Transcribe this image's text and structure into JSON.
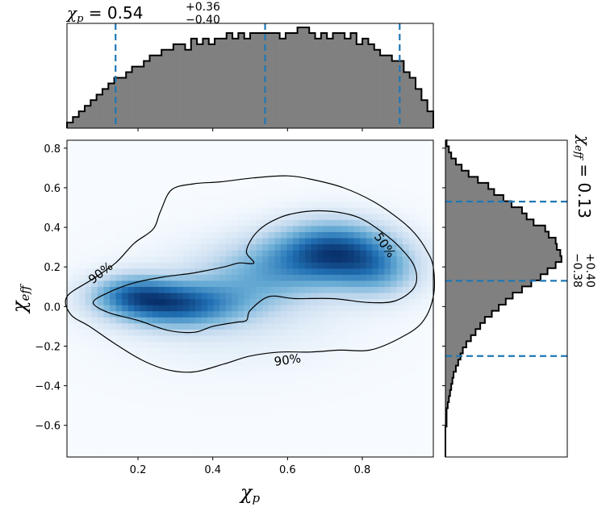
{
  "chart_data": [
    {
      "id": "joint",
      "type": "heatmap",
      "xlabel_symbol": "χ",
      "xlabel_sub": "p",
      "ylabel_symbol": "χ",
      "ylabel_sub": "eff",
      "xlim": [
        0.01,
        0.99
      ],
      "ylim": [
        -0.76,
        0.84
      ],
      "x_ticks": [
        0.2,
        0.4,
        0.6,
        0.8
      ],
      "x_tick_labels": [
        "0.2",
        "0.4",
        "0.6",
        "0.8"
      ],
      "y_ticks": [
        -0.6,
        -0.4,
        -0.2,
        0.0,
        0.2,
        0.4,
        0.6,
        0.8
      ],
      "y_tick_labels": [
        "−0.6",
        "−0.4",
        "−0.2",
        "0.0",
        "0.2",
        "0.4",
        "0.6",
        "0.8"
      ],
      "colormap": "Blues",
      "density_peaks": [
        {
          "x": 0.72,
          "y": 0.28,
          "sx": 0.11,
          "sy": 0.11,
          "w": 1.0
        },
        {
          "x": 0.3,
          "y": 0.01,
          "sx": 0.12,
          "sy": 0.08,
          "w": 0.85
        },
        {
          "x": 0.18,
          "y": 0.07,
          "sx": 0.08,
          "sy": 0.07,
          "w": 0.55
        },
        {
          "x": 0.53,
          "y": 0.17,
          "sx": 0.12,
          "sy": 0.12,
          "w": 0.4
        },
        {
          "x": 0.85,
          "y": 0.18,
          "sx": 0.08,
          "sy": 0.1,
          "w": 0.45
        },
        {
          "x": 0.45,
          "y": 0.0,
          "sx": 0.22,
          "sy": 0.2,
          "w": 0.18
        }
      ],
      "contours": [
        {
          "label": "90%",
          "points": [
            [
              0.01,
              0.05
            ],
            [
              0.08,
              0.14
            ],
            [
              0.14,
              0.22
            ],
            [
              0.19,
              0.32
            ],
            [
              0.24,
              0.39
            ],
            [
              0.26,
              0.48
            ],
            [
              0.29,
              0.59
            ],
            [
              0.35,
              0.62
            ],
            [
              0.42,
              0.63
            ],
            [
              0.51,
              0.65
            ],
            [
              0.6,
              0.66
            ],
            [
              0.67,
              0.64
            ],
            [
              0.75,
              0.6
            ],
            [
              0.83,
              0.53
            ],
            [
              0.9,
              0.44
            ],
            [
              0.94,
              0.37
            ],
            [
              0.97,
              0.29
            ],
            [
              0.99,
              0.2
            ],
            [
              0.99,
              0.05
            ],
            [
              0.96,
              -0.08
            ],
            [
              0.9,
              -0.16
            ],
            [
              0.82,
              -0.22
            ],
            [
              0.74,
              -0.22
            ],
            [
              0.66,
              -0.23
            ],
            [
              0.58,
              -0.23
            ],
            [
              0.5,
              -0.25
            ],
            [
              0.43,
              -0.29
            ],
            [
              0.35,
              -0.33
            ],
            [
              0.28,
              -0.32
            ],
            [
              0.21,
              -0.27
            ],
            [
              0.14,
              -0.19
            ],
            [
              0.07,
              -0.1
            ],
            [
              0.02,
              -0.04
            ]
          ]
        },
        {
          "label": "50%",
          "points": [
            [
              0.08,
              0.02
            ],
            [
              0.12,
              0.07
            ],
            [
              0.19,
              0.12
            ],
            [
              0.27,
              0.15
            ],
            [
              0.35,
              0.17
            ],
            [
              0.43,
              0.2
            ],
            [
              0.47,
              0.22
            ],
            [
              0.51,
              0.22
            ],
            [
              0.49,
              0.28
            ],
            [
              0.52,
              0.38
            ],
            [
              0.58,
              0.45
            ],
            [
              0.65,
              0.48
            ],
            [
              0.72,
              0.48
            ],
            [
              0.79,
              0.45
            ],
            [
              0.85,
              0.38
            ],
            [
              0.9,
              0.3
            ],
            [
              0.94,
              0.2
            ],
            [
              0.94,
              0.1
            ],
            [
              0.89,
              0.03
            ],
            [
              0.82,
              0.02
            ],
            [
              0.72,
              0.04
            ],
            [
              0.62,
              0.04
            ],
            [
              0.55,
              0.05
            ],
            [
              0.5,
              -0.02
            ],
            [
              0.49,
              -0.07
            ],
            [
              0.46,
              -0.08
            ],
            [
              0.4,
              -0.1
            ],
            [
              0.35,
              -0.13
            ],
            [
              0.28,
              -0.12
            ],
            [
              0.2,
              -0.07
            ],
            [
              0.12,
              -0.03
            ]
          ]
        }
      ],
      "contour_labels": [
        {
          "text": "90%",
          "x": 0.1,
          "y": 0.17,
          "angle": -38
        },
        {
          "text": "50%",
          "x": 0.86,
          "y": 0.31,
          "angle": 55
        },
        {
          "text": "90%",
          "x": 0.6,
          "y": -0.27,
          "angle": -8
        }
      ]
    },
    {
      "id": "marginal-x",
      "type": "bar",
      "title_symbol": "χ",
      "title_sub": "p",
      "title_value": " = 0.54",
      "title_plus": "+0.36",
      "title_minus": "−0.40",
      "x_range": [
        0.01,
        0.99
      ],
      "bin_values": [
        1,
        2,
        3,
        4,
        5,
        6,
        7,
        8,
        9,
        9,
        10,
        11,
        11,
        12,
        13,
        13,
        14,
        14,
        15,
        15,
        14,
        16,
        15,
        16,
        15,
        16,
        16,
        17,
        16,
        17,
        16,
        17,
        17,
        17,
        17,
        17,
        16,
        17,
        17,
        18,
        18,
        17,
        16,
        17,
        16,
        17,
        17,
        16,
        17,
        15,
        16,
        15,
        14,
        13,
        13,
        12,
        12,
        10,
        9,
        7,
        5,
        3
      ],
      "quantile_lines": [
        0.14,
        0.54,
        0.9
      ]
    },
    {
      "id": "marginal-y",
      "type": "bar",
      "orientation": "horizontal",
      "title_symbol": "χ",
      "title_sub": "eff",
      "title_value": " = 0.13",
      "title_plus": "+0.40",
      "title_minus": "−0.38",
      "y_range": [
        -0.76,
        0.84
      ],
      "bin_values": [
        0,
        0,
        0,
        0,
        0,
        1,
        1,
        1,
        2,
        3,
        4,
        5,
        6,
        7,
        9,
        11,
        13,
        15,
        18,
        22,
        26,
        30,
        34,
        40,
        46,
        52,
        58,
        66,
        74,
        82,
        88,
        95,
        100,
        99,
        96,
        95,
        89,
        86,
        76,
        70,
        66,
        57,
        50,
        42,
        37,
        28,
        20,
        14,
        9,
        5,
        3,
        1
      ],
      "quantile_lines": [
        -0.25,
        0.13,
        0.53
      ]
    }
  ],
  "colors": {
    "hist_fill": "#808080",
    "hist_edge": "#000000",
    "quantile_line": "#1f77b4",
    "contour": "#000000"
  }
}
